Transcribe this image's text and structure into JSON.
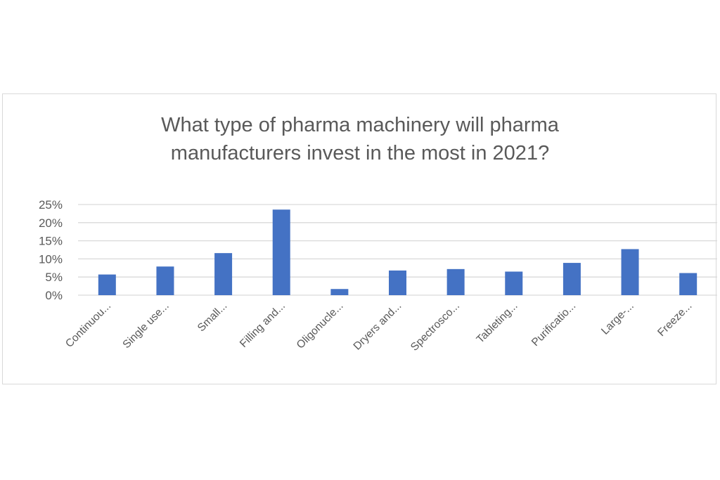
{
  "chart_data": {
    "type": "bar",
    "title": "What type of pharma machinery will pharma manufacturers invest in the most in 2021?",
    "title_lines": [
      "What type of pharma machinery will pharma",
      "manufacturers invest in the most in 2021?"
    ],
    "xlabel": "",
    "ylabel": "",
    "categories": [
      "Continuou...",
      "Single use...",
      "Small...",
      "Filling and...",
      "Oligonucle...",
      "Dryers and...",
      "Spectrosco...",
      "Tableting...",
      "Purificatio...",
      "Large-...",
      "Freeze..."
    ],
    "values": [
      5.7,
      7.9,
      11.6,
      23.6,
      1.7,
      6.8,
      7.2,
      6.5,
      8.9,
      12.7,
      6.1
    ],
    "value_format": "percent",
    "ylim": [
      0,
      25
    ],
    "yticks": [
      0,
      5,
      10,
      15,
      20,
      25
    ],
    "ytick_labels": [
      "0%",
      "5%",
      "10%",
      "15%",
      "20%",
      "25%"
    ],
    "grid": true,
    "legend": "none",
    "bar_color": "#4472C4"
  },
  "colors": {
    "bar": "#4472C4",
    "grid": "#d9d9d9",
    "text": "#595959",
    "border": "#d9d9d9"
  }
}
